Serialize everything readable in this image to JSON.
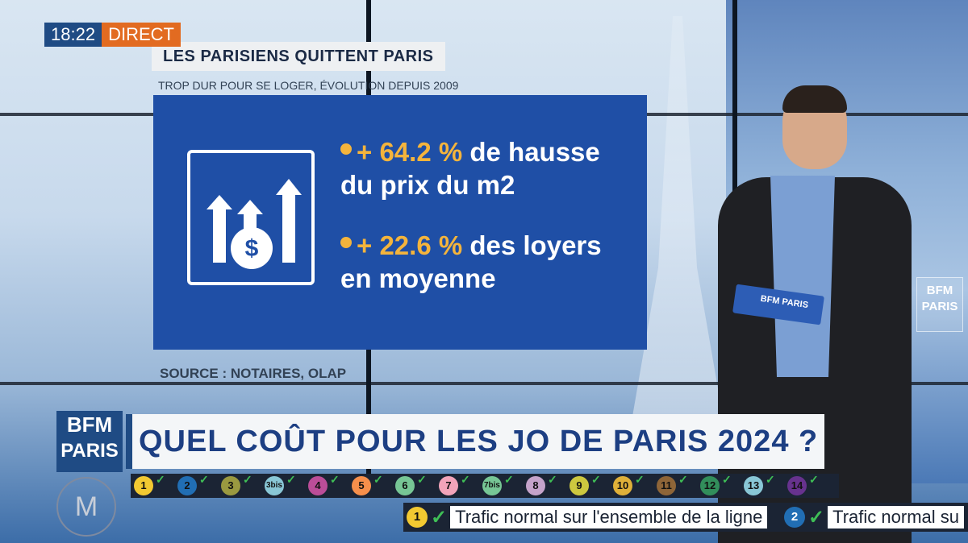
{
  "overlay": {
    "time": "18:22",
    "live_label": "DIRECT"
  },
  "screen": {
    "headline": "LES PARISIENS QUITTENT PARIS",
    "subline": "TROP DUR POUR SE LOGER, ÉVOLUTION DEPUIS 2009",
    "bullet1_value": "+ 64.2 %",
    "bullet1_text": " de hausse",
    "bullet1_line2": "du prix du m2",
    "bullet2_value": "+ 22.6 %",
    "bullet2_text": " des loyers",
    "bullet2_line2": "en moyenne",
    "source": "SOURCE : NOTAIRES, OLAP",
    "icon": "price-increase-icon"
  },
  "presenter": {
    "cards_label": "BFM PARIS"
  },
  "wall_logo": {
    "line1": "BFM",
    "line2": "PARIS"
  },
  "channel_logo": {
    "line1": "BFM",
    "line2": "PARIS"
  },
  "banner": {
    "title": "QUEL COÛT POUR LES JO DE PARIS 2024 ?"
  },
  "metro": {
    "lines": [
      {
        "label": "1",
        "color": "#f2c931"
      },
      {
        "label": "2",
        "color": "#216eb4"
      },
      {
        "label": "3",
        "color": "#9a9940"
      },
      {
        "label": "3bis",
        "color": "#89c7d6"
      },
      {
        "label": "4",
        "color": "#bb4d98"
      },
      {
        "label": "5",
        "color": "#f68f4b"
      },
      {
        "label": "6",
        "color": "#77c695"
      },
      {
        "label": "7",
        "color": "#f3a4ba"
      },
      {
        "label": "7bis",
        "color": "#77c695"
      },
      {
        "label": "8",
        "color": "#c5a3ca"
      },
      {
        "label": "9",
        "color": "#cdc83f"
      },
      {
        "label": "10",
        "color": "#dfb039"
      },
      {
        "label": "11",
        "color": "#8e6538"
      },
      {
        "label": "12",
        "color": "#328e5b"
      },
      {
        "label": "13",
        "color": "#89c7d6"
      },
      {
        "label": "14",
        "color": "#67328e"
      }
    ],
    "m_logo": "M"
  },
  "traffic": [
    {
      "line": "1",
      "color": "#f2c931",
      "text": "Trafic normal sur l'ensemble de la ligne"
    },
    {
      "line": "2",
      "color": "#216eb4",
      "text": "Trafic normal su"
    }
  ]
}
